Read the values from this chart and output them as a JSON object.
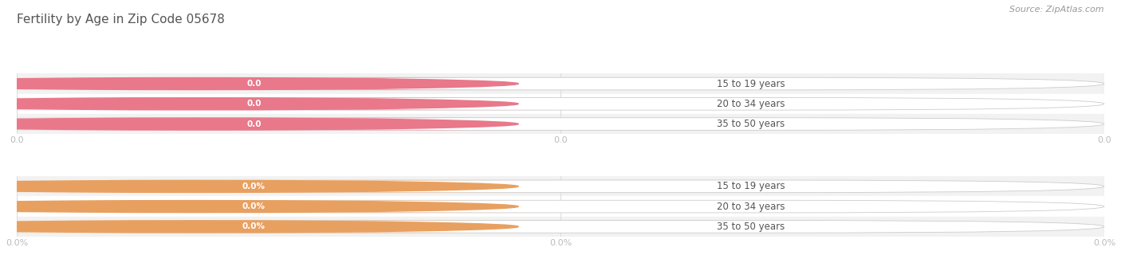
{
  "title": "Fertility by Age in Zip Code 05678",
  "source": "Source: ZipAtlas.com",
  "categories": [
    "15 to 19 years",
    "20 to 34 years",
    "35 to 50 years"
  ],
  "values_count": [
    0.0,
    0.0,
    0.0
  ],
  "values_pct": [
    0.0,
    0.0,
    0.0
  ],
  "bar_color_pink": "#f4a0b0",
  "bar_color_pink_circle": "#e8788a",
  "bar_color_orange": "#f5c8a0",
  "bar_color_orange_circle": "#e8a060",
  "bar_text_color": "#555555",
  "title_color": "#555555",
  "source_color": "#999999",
  "tick_label_color": "#bbbbbb",
  "bg_color": "#ffffff",
  "row_band_color": "#f2f2f2",
  "grid_line_color": "#dddddd",
  "pill_border_color": "#cccccc",
  "xtick_labels_count": [
    "0.0",
    "0.0",
    "0.0"
  ],
  "xtick_labels_pct": [
    "0.0%",
    "0.0%",
    "0.0%"
  ],
  "bar_height": 0.62,
  "title_fontsize": 11,
  "label_fontsize": 8.5,
  "value_fontsize": 7.5,
  "tick_fontsize": 8,
  "source_fontsize": 8
}
